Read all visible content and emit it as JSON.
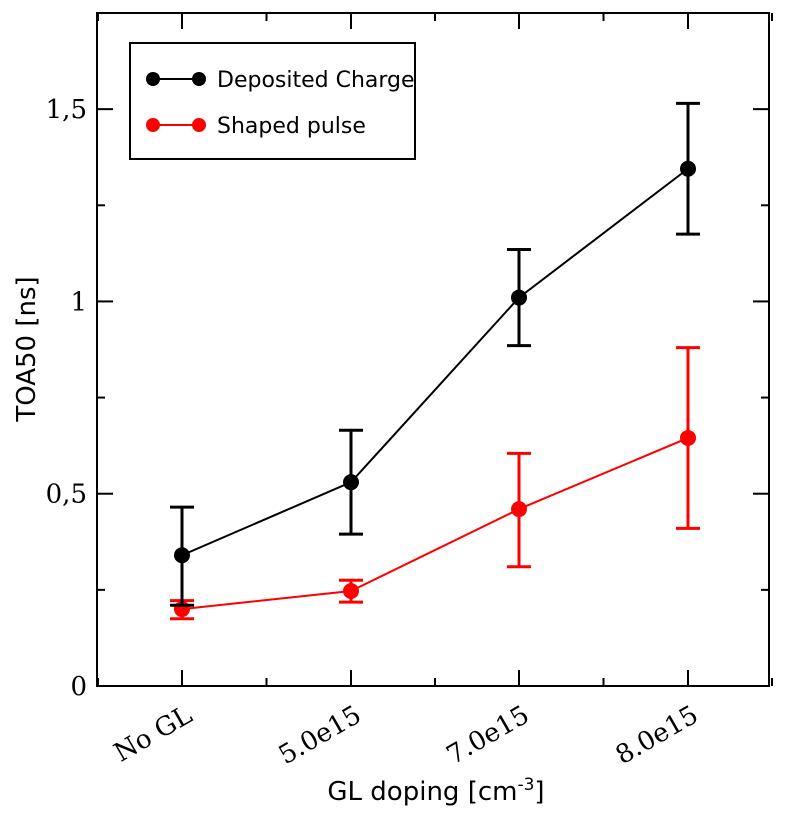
{
  "chart_data": {
    "type": "line",
    "xlabel": "GL doping [cm",
    "xlabel_superscript": "-3",
    "xlabel_suffix": "]",
    "ylabel": "TOA50 [ns]",
    "categories": [
      "No GL",
      "5.0e15",
      "7.0e15",
      "8.0e15"
    ],
    "ylim": [
      0,
      1.75
    ],
    "yticks": [
      {
        "value": 0,
        "label": "0"
      },
      {
        "value": 0.5,
        "label": "0,5"
      },
      {
        "value": 1.0,
        "label": "1"
      },
      {
        "value": 1.5,
        "label": "1,5"
      }
    ],
    "yminor_ticks": [
      0.25,
      0.75,
      1.25
    ],
    "grid": false,
    "legend_position": "top-left",
    "series": [
      {
        "name": "Deposited Charge",
        "color": "#000000",
        "values": [
          0.34,
          0.53,
          1.01,
          1.345
        ],
        "err_low": [
          0.21,
          0.395,
          0.885,
          1.175
        ],
        "err_high": [
          0.465,
          0.665,
          1.135,
          1.515
        ]
      },
      {
        "name": "Shaped pulse",
        "color": "#ff0000",
        "values": [
          0.2,
          0.247,
          0.46,
          0.645
        ],
        "err_low": [
          0.175,
          0.218,
          0.31,
          0.41
        ],
        "err_high": [
          0.222,
          0.275,
          0.605,
          0.88
        ]
      }
    ]
  }
}
